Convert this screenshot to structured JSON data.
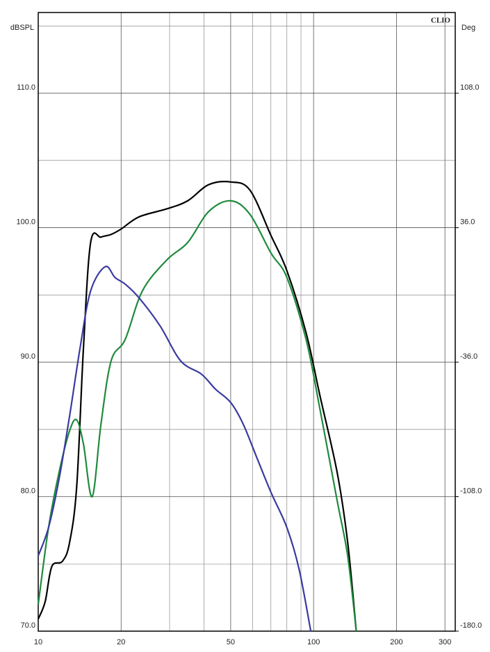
{
  "chart_data": {
    "type": "line",
    "brand": "CLIO",
    "y_label": "dBSPL",
    "y2_label": "Deg",
    "xscale": "log",
    "xlim": [
      10,
      327
    ],
    "xticks": [
      10,
      20,
      50,
      100,
      200,
      300
    ],
    "x_minor_grid": [
      30,
      40,
      60,
      70,
      80,
      90
    ],
    "ylim": [
      70,
      116
    ],
    "yticks": [
      {
        "value": 70,
        "label": "70.0"
      },
      {
        "value": 80,
        "label": "80.0"
      },
      {
        "value": 90,
        "label": "90.0"
      },
      {
        "value": 100,
        "label": "100.0"
      },
      {
        "value": 110,
        "label": "110.0"
      }
    ],
    "y_minor_grid": [
      75,
      85,
      95,
      105,
      115
    ],
    "y2lim": [
      -180,
      151.2
    ],
    "y2ticks": [
      {
        "value": -180,
        "label": "-180.0"
      },
      {
        "value": -108,
        "label": "-108.0"
      },
      {
        "value": -36,
        "label": "-36.0"
      },
      {
        "value": 36,
        "label": "36.0"
      },
      {
        "value": 108,
        "label": "108.0"
      }
    ],
    "grid": true,
    "series": [
      {
        "color": "#000000",
        "x": [
          10,
          10.6,
          11.2,
          12.25,
          13.0,
          13.8,
          14.6,
          15.5,
          16.9,
          18.4,
          20,
          23.2,
          29.3,
          34.9,
          41.6,
          50,
          58.7,
          70.1,
          80,
          93.9,
          105.5,
          121.8,
          133,
          142.9
        ],
        "values": [
          70.9,
          72.2,
          74.8,
          75.2,
          76.6,
          80.8,
          91.1,
          98.9,
          99.3,
          99.5,
          99.9,
          100.8,
          101.4,
          102.0,
          103.2,
          103.4,
          102.8,
          99.4,
          96.8,
          92.2,
          87.5,
          81.8,
          76.6,
          70
        ]
      },
      {
        "color": "#1f8a3c",
        "x": [
          10,
          10.9,
          11.9,
          13.0,
          13.8,
          14.6,
          15.7,
          16.9,
          18.4,
          20.7,
          23.9,
          29.3,
          34.9,
          41.6,
          50,
          58.7,
          70.1,
          80,
          93.9,
          105.5,
          121.8,
          133,
          142.9
        ],
        "values": [
          72.0,
          77.7,
          81.8,
          84.9,
          85.7,
          83.9,
          80.0,
          85.4,
          90.1,
          91.7,
          95.3,
          97.6,
          98.9,
          101.2,
          102.0,
          101.0,
          98.1,
          96.3,
          91.7,
          86.5,
          79.7,
          75.6,
          70
        ]
      },
      {
        "color": "#3a3aa0",
        "x": [
          10,
          10.9,
          11.9,
          13.0,
          14.2,
          15.5,
          17.5,
          19.0,
          20.7,
          23.2,
          27.7,
          32.9,
          39.2,
          44.0,
          50,
          55.5,
          62.5,
          70.1,
          80,
          88.6,
          97.7
        ],
        "values": [
          75.6,
          77.7,
          81.3,
          86.0,
          91.1,
          95.3,
          97.1,
          96.3,
          95.8,
          94.8,
          92.7,
          90.1,
          89.1,
          88.0,
          87.0,
          85.4,
          82.8,
          80.3,
          77.7,
          74.6,
          70
        ]
      }
    ]
  }
}
